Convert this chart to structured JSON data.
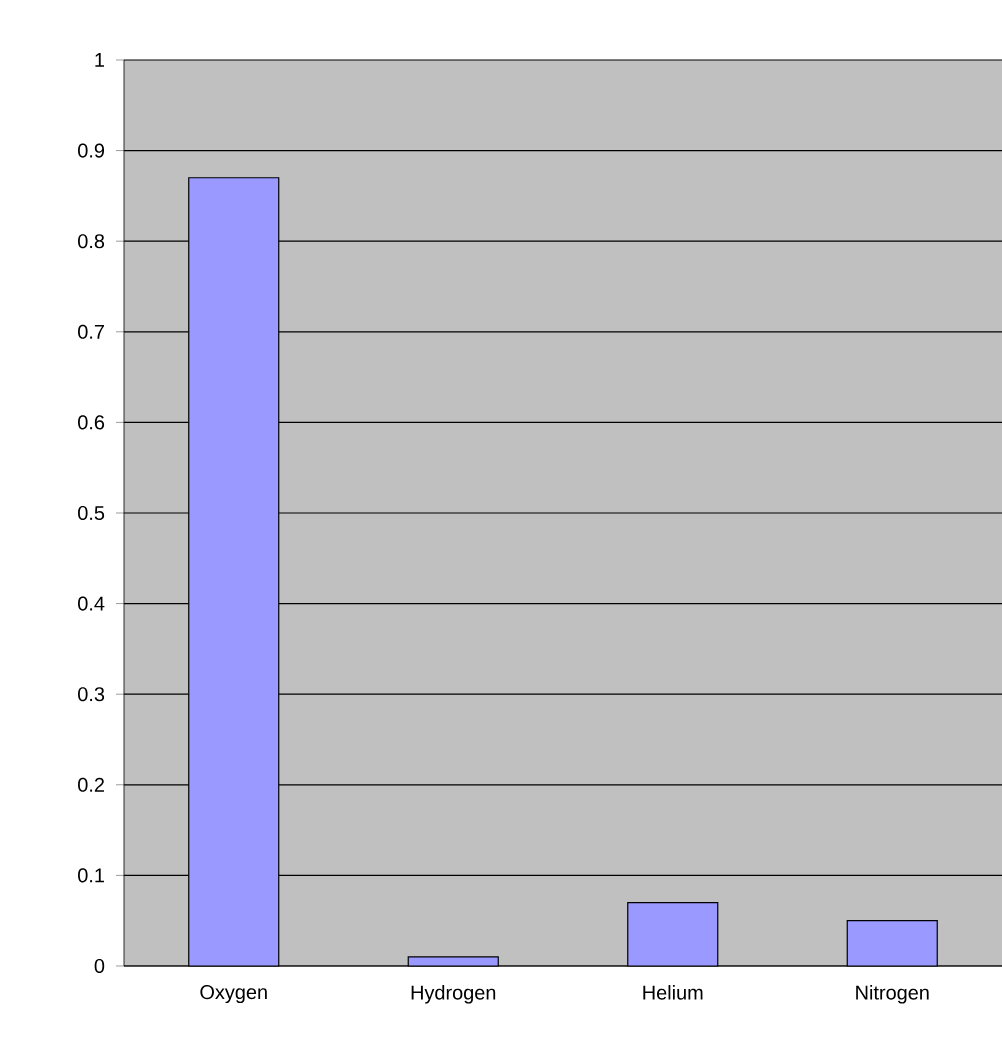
{
  "chart_data": {
    "type": "bar",
    "categories": [
      "Oxygen",
      "Hydrogen",
      "Helium",
      "Nitrogen"
    ],
    "values": [
      0.87,
      0.01,
      0.07,
      0.05
    ],
    "color": "#9999ff",
    "ylim": [
      0,
      1
    ],
    "yticks": [
      0,
      0.1,
      0.2,
      0.3,
      0.4,
      0.5,
      0.6,
      0.7,
      0.8,
      0.9,
      1
    ],
    "grid": "y"
  }
}
